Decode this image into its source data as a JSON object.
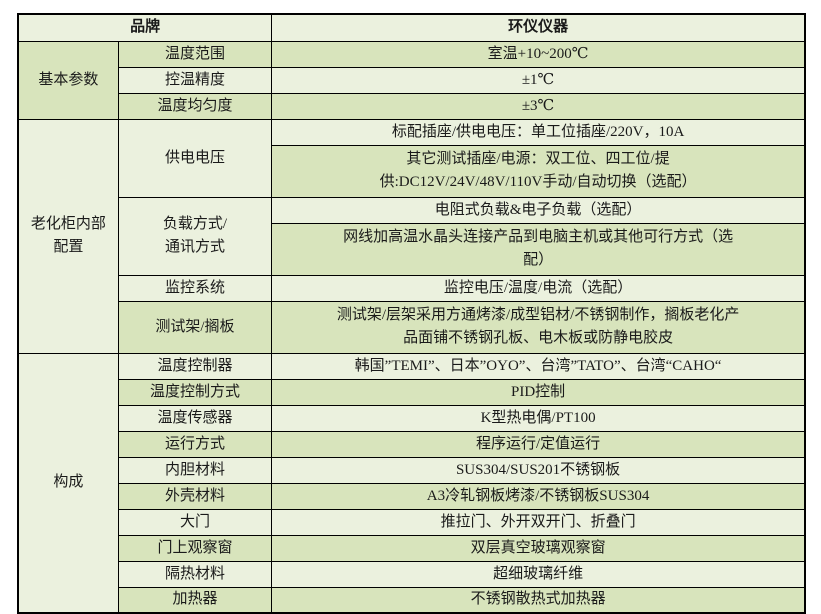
{
  "header": {
    "brand_label": "品牌",
    "brand_value": "环仪仪器"
  },
  "sections": [
    {
      "title": "基本参数",
      "rows": [
        {
          "label": "温度范围",
          "value": "室温+10~200℃"
        },
        {
          "label": "控温精度",
          "value": "±1℃"
        },
        {
          "label": "温度均匀度",
          "value": "±3℃"
        }
      ]
    },
    {
      "title": "老化柜内部\n配置",
      "rows": [
        {
          "label": "供电电压",
          "values": [
            "标配插座/供电电压：单工位插座/220V，10A",
            "其它测试插座/电源：双工位、四工位/提\n供:DC12V/24V/48V/110V手动/自动切换（选配）"
          ]
        },
        {
          "label": "负载方式/\n通讯方式",
          "values": [
            "电阻式负载&电子负载（选配）",
            "网线加高温水晶头连接产品到电脑主机或其他可行方式（选\n配）"
          ]
        },
        {
          "label": "监控系统",
          "value": "监控电压/温度/电流（选配）"
        },
        {
          "label": "测试架/搁板",
          "value": "测试架/层架采用方通烤漆/成型铝材/不锈钢制作，搁板老化产\n品面铺不锈钢孔板、电木板或防静电胶皮"
        }
      ]
    },
    {
      "title": "构成",
      "rows": [
        {
          "label": "温度控制器",
          "value": "韩国”TEMI”、日本”OYO”、台湾”TATO”、台湾“CAHO“"
        },
        {
          "label": "温度控制方式",
          "value": "PID控制"
        },
        {
          "label": "温度传感器",
          "value": "K型热电偶/PT100"
        },
        {
          "label": "运行方式",
          "value": "程序运行/定值运行"
        },
        {
          "label": "内胆材料",
          "value": "SUS304/SUS201不锈钢板"
        },
        {
          "label": "外壳材料",
          "value": "A3冷轧钢板烤漆/不锈钢板SUS304"
        },
        {
          "label": "大门",
          "value": "推拉门、外开双开门、折叠门"
        },
        {
          "label": "门上观察窗",
          "value": "双层真空玻璃观察窗"
        },
        {
          "label": "隔热材料",
          "value": "超细玻璃纤维"
        },
        {
          "label": "加热器",
          "value": "不锈钢散热式加热器"
        }
      ]
    }
  ],
  "colors": {
    "row_light": "#EBF1DE",
    "row_dark": "#D8E4BC",
    "border": "#000000",
    "text": "#1a1a1a"
  }
}
